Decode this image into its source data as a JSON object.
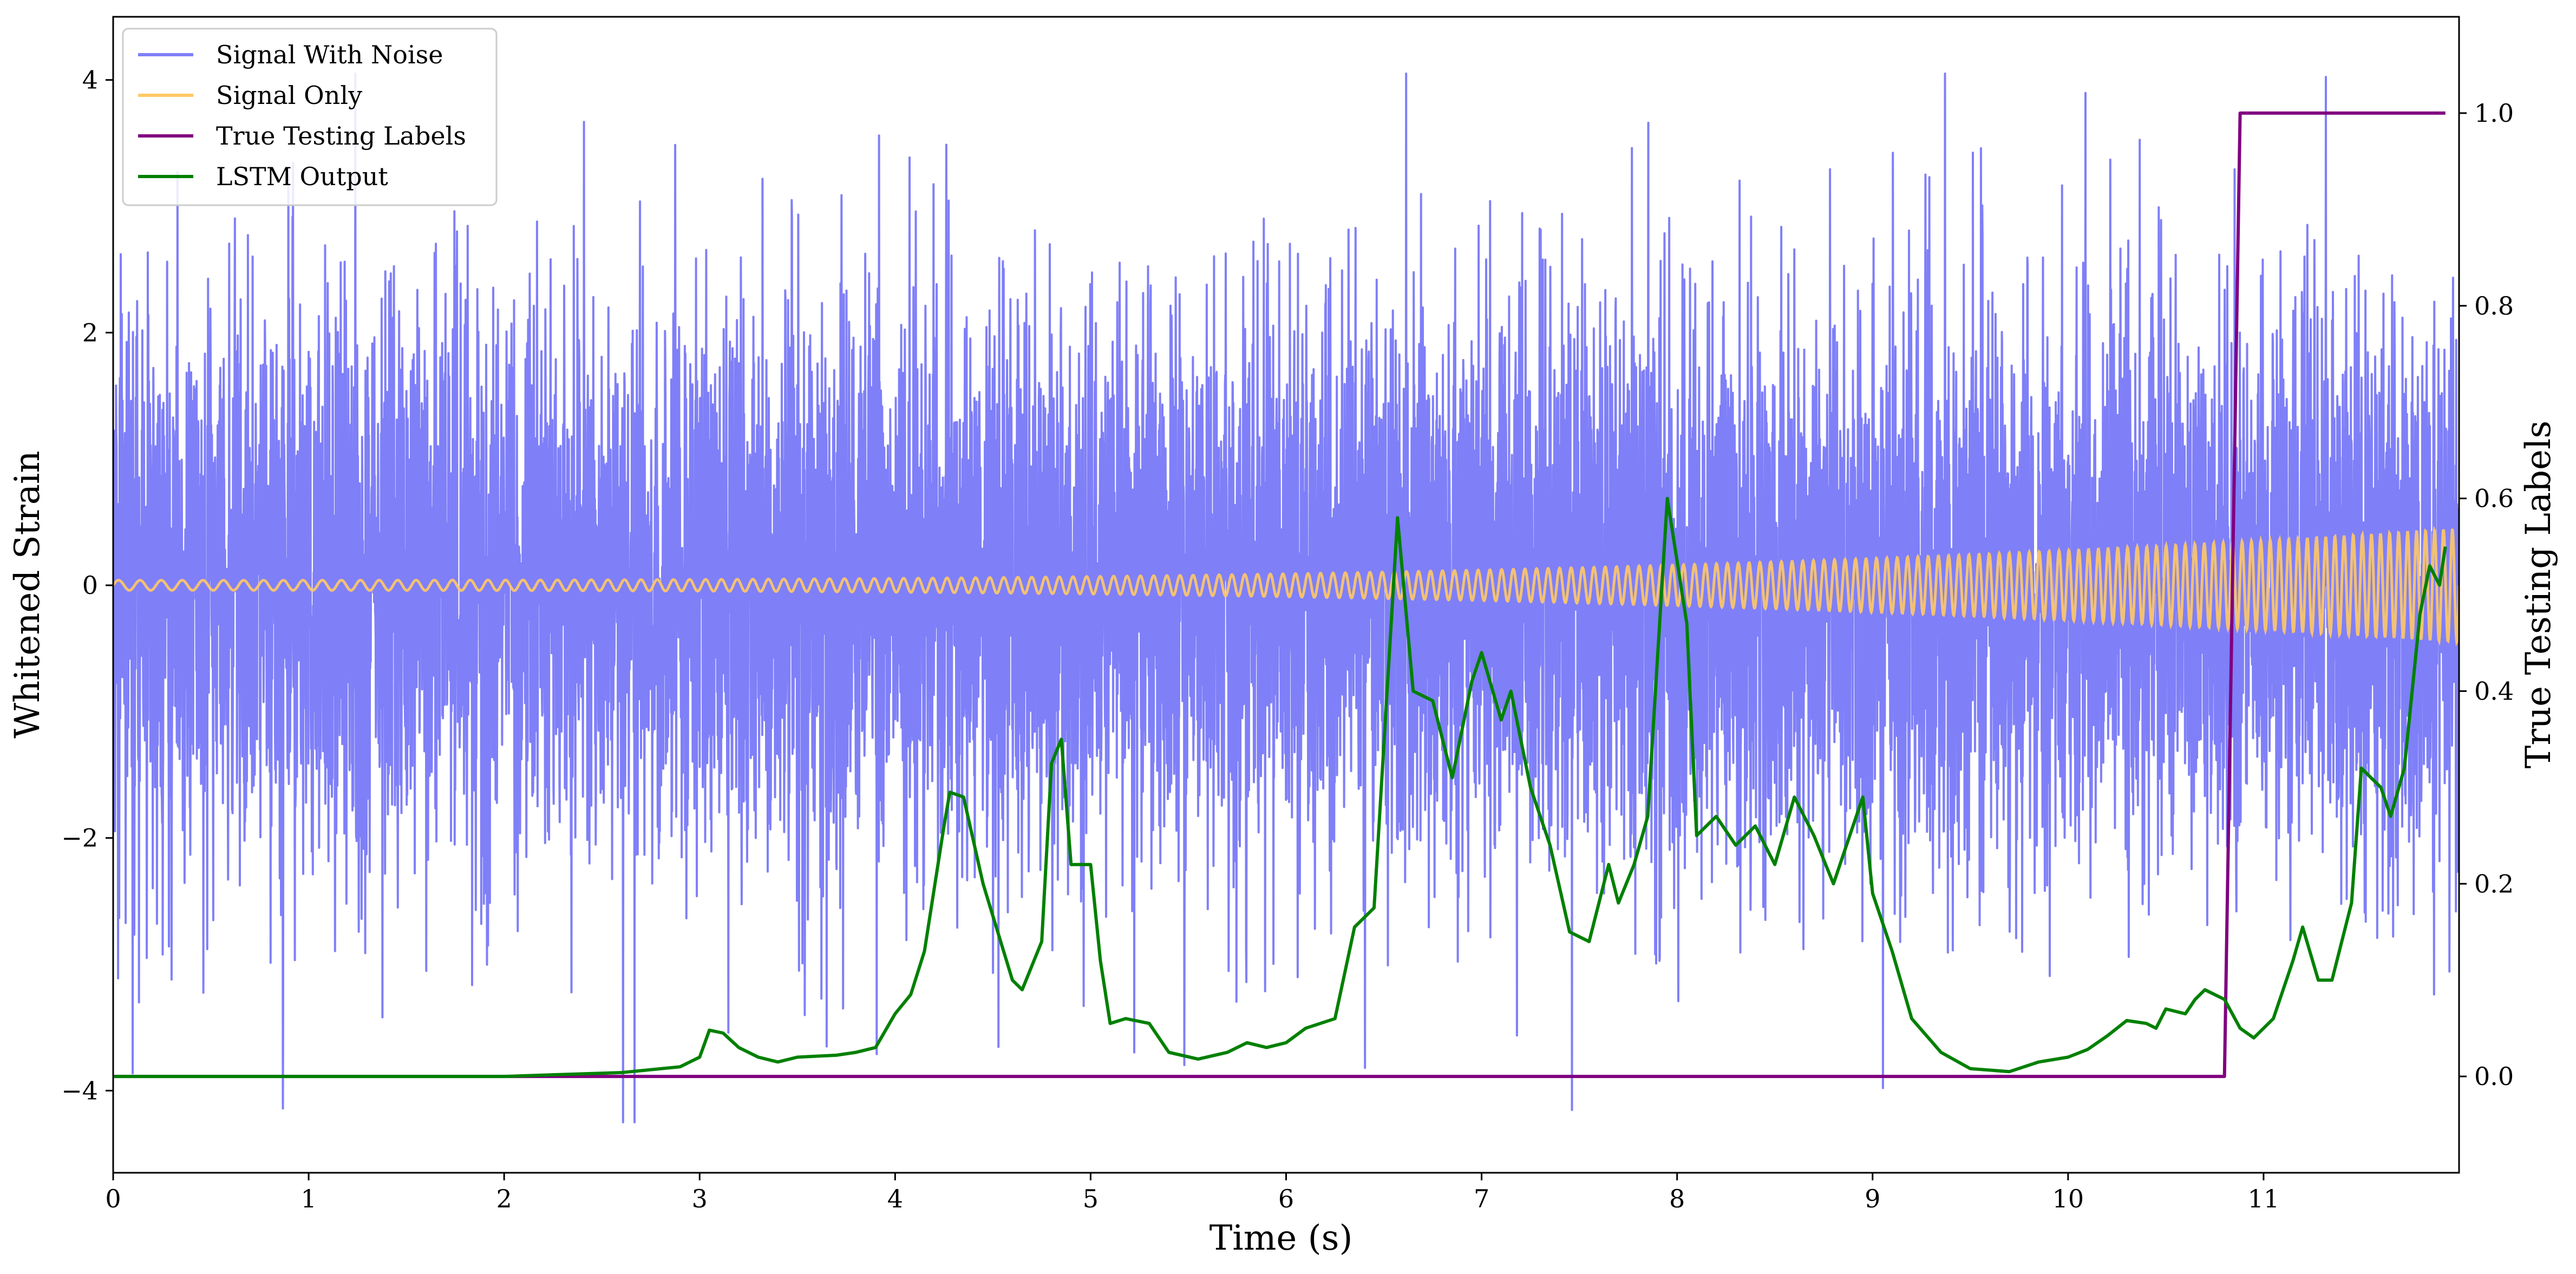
{
  "chart_data": {
    "type": "line",
    "title": "",
    "xlabel": "Time (s)",
    "ylabel": "Whitened Strain",
    "ylabel_right": "True Testing Labels",
    "xlim": [
      0,
      12.0
    ],
    "ylim_left": [
      -4.65,
      4.5
    ],
    "ylim_right": [
      -0.1,
      1.1
    ],
    "x_ticks": [
      {
        "value": 0,
        "label": "0"
      },
      {
        "value": 1,
        "label": "1"
      },
      {
        "value": 2,
        "label": "2"
      },
      {
        "value": 3,
        "label": "3"
      },
      {
        "value": 4,
        "label": "4"
      },
      {
        "value": 5,
        "label": "5"
      },
      {
        "value": 6,
        "label": "6"
      },
      {
        "value": 7,
        "label": "7"
      },
      {
        "value": 8,
        "label": "8"
      },
      {
        "value": 9,
        "label": "9"
      },
      {
        "value": 10,
        "label": "10"
      },
      {
        "value": 11,
        "label": "11"
      }
    ],
    "y_ticks_left": [
      {
        "value": -4,
        "label": "−4"
      },
      {
        "value": -2,
        "label": "−2"
      },
      {
        "value": 0,
        "label": "0"
      },
      {
        "value": 2,
        "label": "2"
      },
      {
        "value": 4,
        "label": "4"
      }
    ],
    "y_ticks_right": [
      {
        "value": 0.0,
        "label": "0.0"
      },
      {
        "value": 0.2,
        "label": "0.2"
      },
      {
        "value": 0.4,
        "label": "0.4"
      },
      {
        "value": 0.6,
        "label": "0.6"
      },
      {
        "value": 0.8,
        "label": "0.8"
      },
      {
        "value": 1.0,
        "label": "1.0"
      }
    ],
    "grid": false,
    "legend_position": "top-left",
    "series": [
      {
        "name": "Signal With Noise",
        "axis": "left",
        "color": "#7f7ff8",
        "kind": "noise",
        "x_range": [
          0,
          12.0
        ],
        "typical_amplitude": 1.3,
        "max_value": 4.05,
        "min_value": -4.25
      },
      {
        "name": "Signal Only",
        "axis": "left",
        "color": "#ffc966",
        "kind": "chirp",
        "x_range": [
          0,
          12.0
        ],
        "amplitude_start": 0.04,
        "amplitude_end": 0.45,
        "frequency_start_hz": 9,
        "frequency_end_hz": 22
      },
      {
        "name": "True Testing Labels",
        "axis": "right",
        "color": "#800080",
        "points": [
          [
            0,
            0
          ],
          [
            10.8,
            0
          ],
          [
            10.88,
            1.0
          ],
          [
            11.93,
            1.0
          ]
        ]
      },
      {
        "name": "LSTM Output",
        "axis": "right",
        "color": "#008000",
        "points": [
          [
            0,
            0
          ],
          [
            1.0,
            0
          ],
          [
            2.0,
            0
          ],
          [
            2.3,
            0.002
          ],
          [
            2.6,
            0.004
          ],
          [
            2.9,
            0.01
          ],
          [
            3.0,
            0.02
          ],
          [
            3.05,
            0.048
          ],
          [
            3.12,
            0.045
          ],
          [
            3.2,
            0.03
          ],
          [
            3.3,
            0.02
          ],
          [
            3.4,
            0.015
          ],
          [
            3.5,
            0.02
          ],
          [
            3.7,
            0.022
          ],
          [
            3.8,
            0.025
          ],
          [
            3.9,
            0.03
          ],
          [
            4.0,
            0.065
          ],
          [
            4.08,
            0.085
          ],
          [
            4.15,
            0.13
          ],
          [
            4.25,
            0.26
          ],
          [
            4.28,
            0.295
          ],
          [
            4.35,
            0.29
          ],
          [
            4.45,
            0.2
          ],
          [
            4.6,
            0.1
          ],
          [
            4.65,
            0.09
          ],
          [
            4.75,
            0.14
          ],
          [
            4.8,
            0.325
          ],
          [
            4.85,
            0.35
          ],
          [
            4.9,
            0.22
          ],
          [
            5.0,
            0.22
          ],
          [
            5.05,
            0.12
          ],
          [
            5.1,
            0.055
          ],
          [
            5.18,
            0.06
          ],
          [
            5.3,
            0.055
          ],
          [
            5.4,
            0.025
          ],
          [
            5.55,
            0.018
          ],
          [
            5.7,
            0.025
          ],
          [
            5.8,
            0.035
          ],
          [
            5.9,
            0.03
          ],
          [
            6.0,
            0.035
          ],
          [
            6.1,
            0.05
          ],
          [
            6.25,
            0.06
          ],
          [
            6.35,
            0.155
          ],
          [
            6.45,
            0.175
          ],
          [
            6.57,
            0.58
          ],
          [
            6.65,
            0.4
          ],
          [
            6.75,
            0.39
          ],
          [
            6.85,
            0.31
          ],
          [
            6.95,
            0.41
          ],
          [
            7.0,
            0.44
          ],
          [
            7.1,
            0.37
          ],
          [
            7.15,
            0.4
          ],
          [
            7.25,
            0.3
          ],
          [
            7.35,
            0.24
          ],
          [
            7.45,
            0.15
          ],
          [
            7.55,
            0.14
          ],
          [
            7.65,
            0.22
          ],
          [
            7.7,
            0.18
          ],
          [
            7.78,
            0.22
          ],
          [
            7.85,
            0.27
          ],
          [
            7.95,
            0.6
          ],
          [
            8.05,
            0.47
          ],
          [
            8.1,
            0.25
          ],
          [
            8.2,
            0.27
          ],
          [
            8.3,
            0.24
          ],
          [
            8.4,
            0.26
          ],
          [
            8.5,
            0.22
          ],
          [
            8.6,
            0.29
          ],
          [
            8.7,
            0.25
          ],
          [
            8.8,
            0.2
          ],
          [
            8.9,
            0.26
          ],
          [
            8.95,
            0.29
          ],
          [
            9.0,
            0.19
          ],
          [
            9.1,
            0.13
          ],
          [
            9.2,
            0.06
          ],
          [
            9.35,
            0.025
          ],
          [
            9.5,
            0.008
          ],
          [
            9.7,
            0.005
          ],
          [
            9.85,
            0.015
          ],
          [
            10.0,
            0.02
          ],
          [
            10.1,
            0.028
          ],
          [
            10.2,
            0.042
          ],
          [
            10.3,
            0.058
          ],
          [
            10.4,
            0.055
          ],
          [
            10.45,
            0.05
          ],
          [
            10.5,
            0.07
          ],
          [
            10.6,
            0.065
          ],
          [
            10.65,
            0.08
          ],
          [
            10.7,
            0.09
          ],
          [
            10.8,
            0.08
          ],
          [
            10.88,
            0.05
          ],
          [
            10.95,
            0.04
          ],
          [
            11.05,
            0.06
          ],
          [
            11.15,
            0.12
          ],
          [
            11.2,
            0.155
          ],
          [
            11.28,
            0.1
          ],
          [
            11.35,
            0.1
          ],
          [
            11.45,
            0.18
          ],
          [
            11.5,
            0.32
          ],
          [
            11.6,
            0.3
          ],
          [
            11.65,
            0.27
          ],
          [
            11.72,
            0.32
          ],
          [
            11.8,
            0.48
          ],
          [
            11.85,
            0.53
          ],
          [
            11.9,
            0.51
          ],
          [
            11.93,
            0.55
          ]
        ]
      }
    ]
  }
}
